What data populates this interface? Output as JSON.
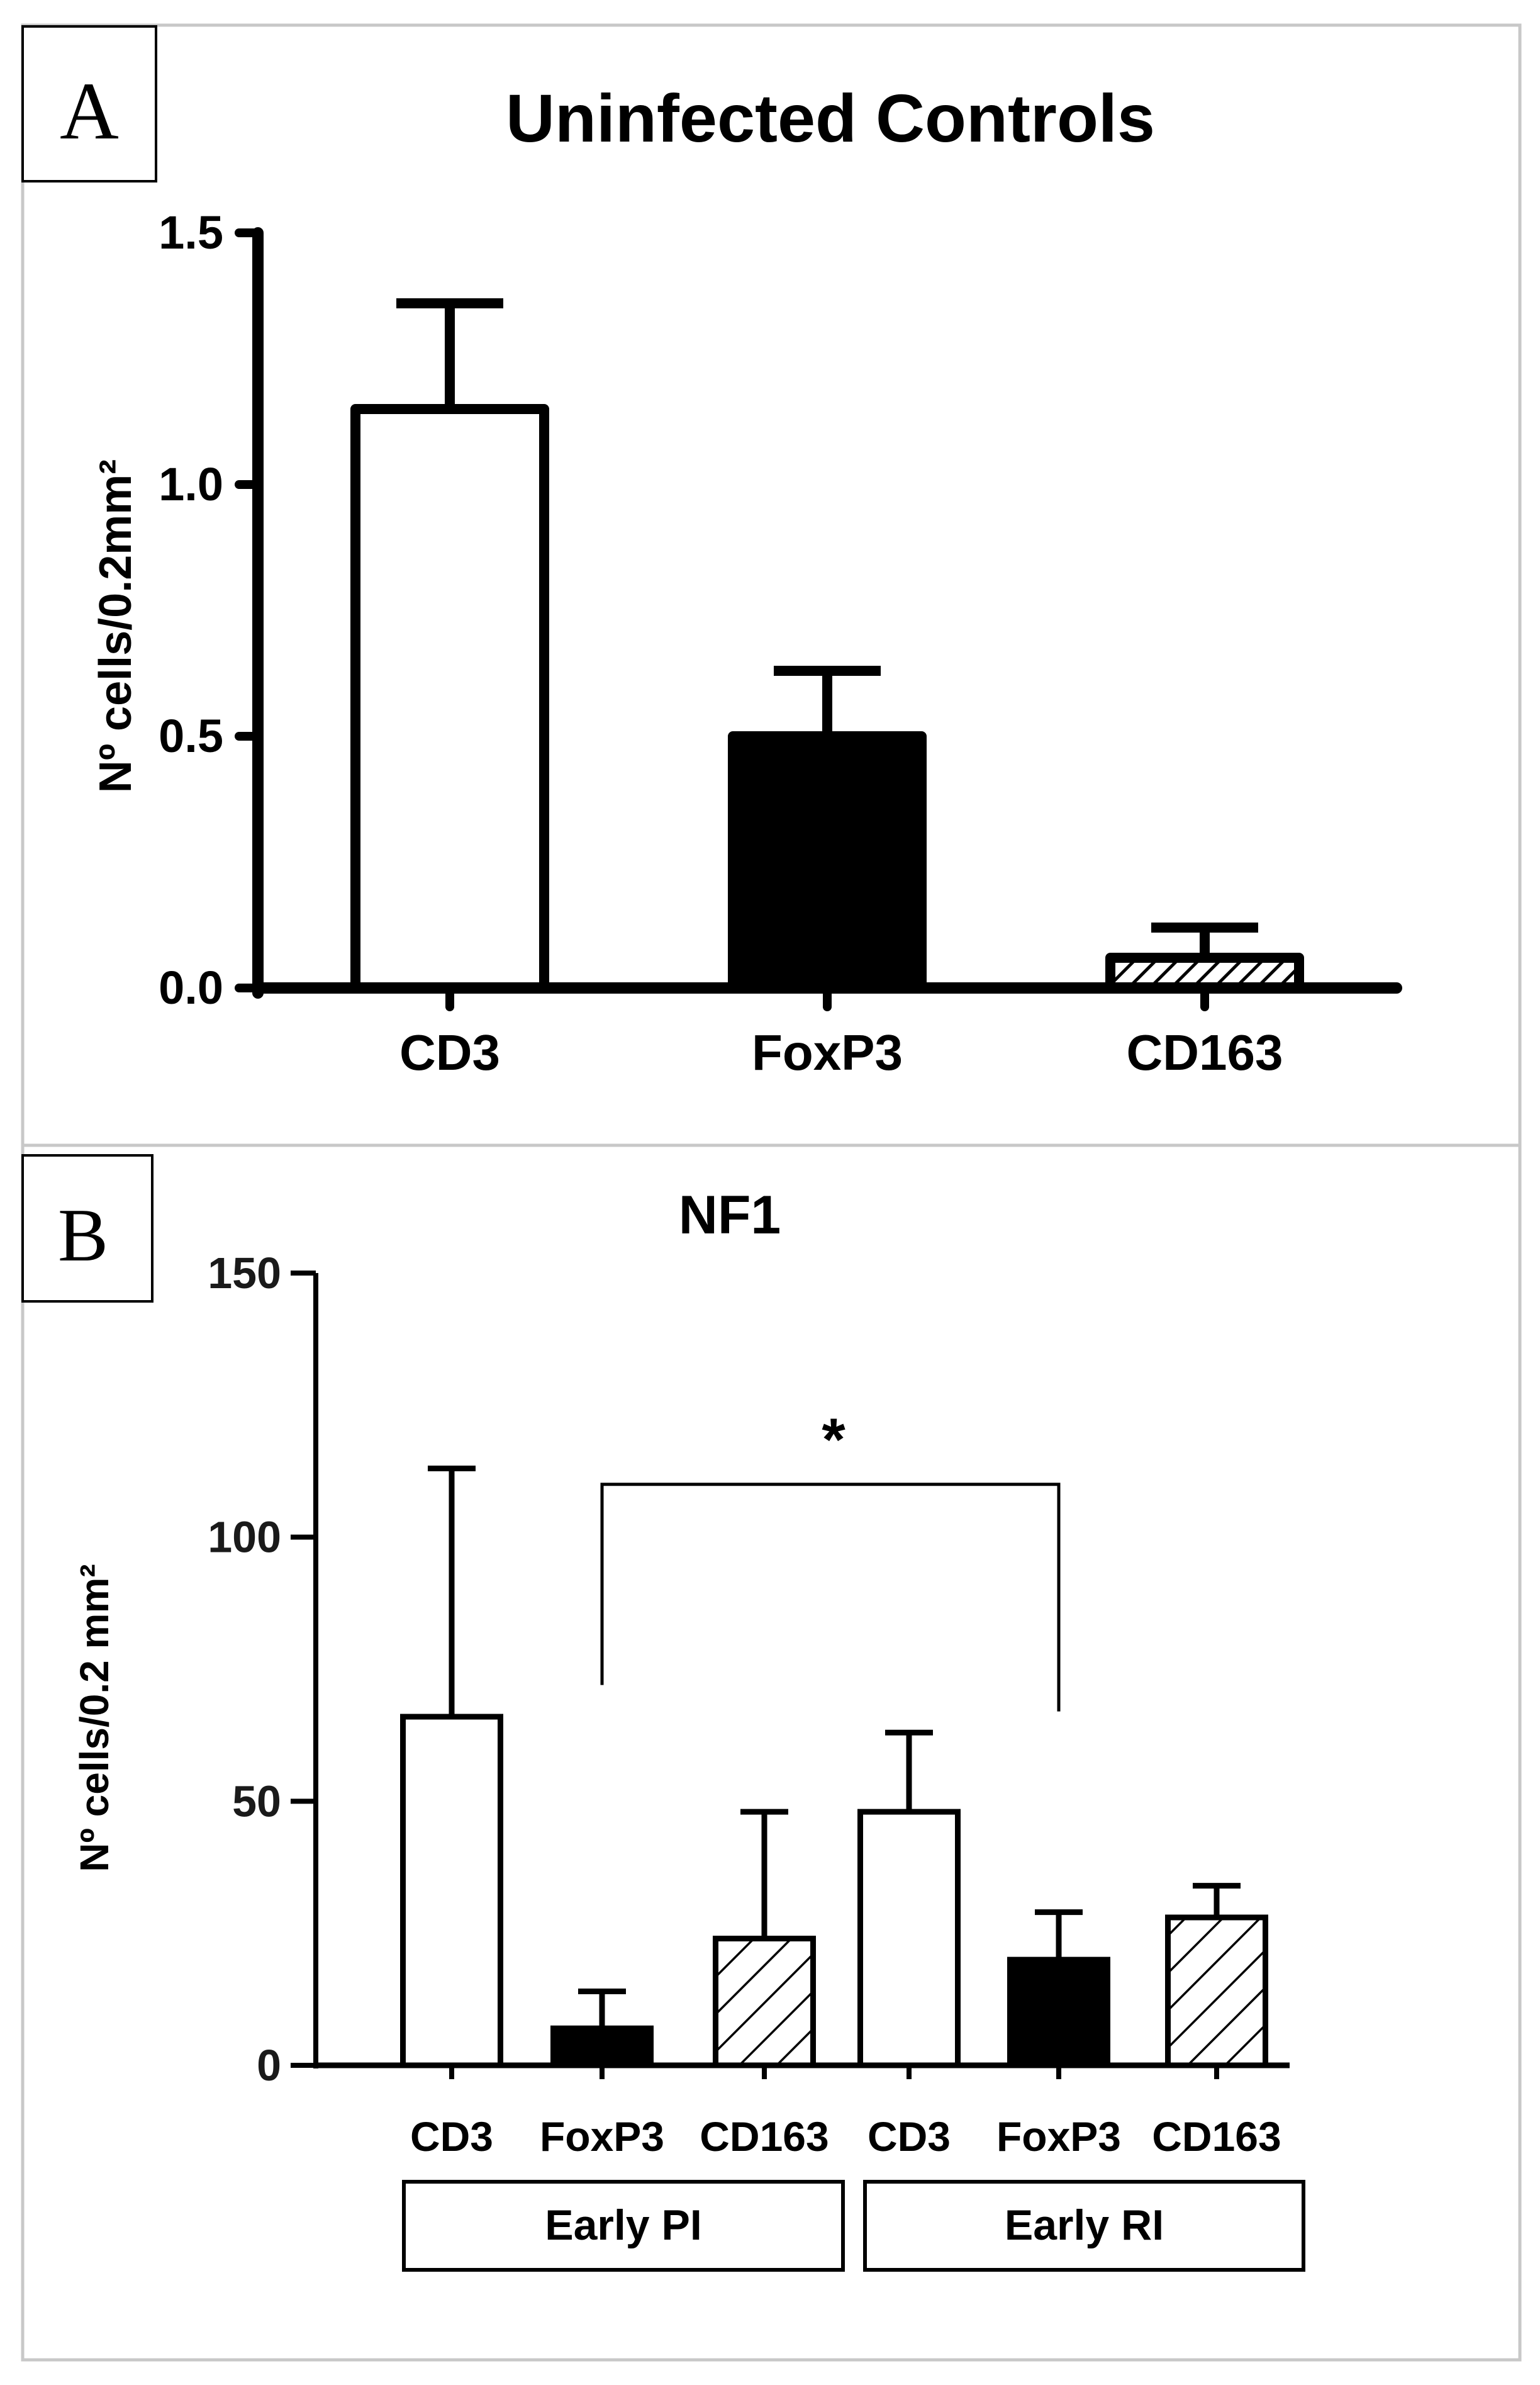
{
  "chart_data": [
    {
      "panel": "A",
      "type": "bar",
      "title": "Uninfected Controls",
      "xlabel": "",
      "ylabel": "Nº cells/0.2mm²",
      "ylim": [
        0,
        1.5
      ],
      "yticks": [
        0.0,
        0.5,
        1.0,
        1.5
      ],
      "ytick_labels": [
        "0.0",
        "0.5",
        "1.0",
        "1.5"
      ],
      "categories": [
        "CD3",
        "FoxP3",
        "CD163"
      ],
      "values": [
        1.15,
        0.5,
        0.06
      ],
      "errors": [
        0.21,
        0.13,
        0.06
      ],
      "fills": [
        "open",
        "solid",
        "hatched"
      ]
    },
    {
      "panel": "B",
      "type": "bar",
      "title": "NF1",
      "xlabel": "",
      "ylabel": "Nº cells/0.2 mm²",
      "ylim": [
        0,
        150
      ],
      "yticks": [
        0,
        50,
        100,
        150
      ],
      "ytick_labels": [
        "0",
        "50",
        "100",
        "150"
      ],
      "categories": [
        "CD3",
        "FoxP3",
        "CD163",
        "CD3",
        "FoxP3",
        "CD163"
      ],
      "values": [
        66,
        7,
        24,
        48,
        20,
        28
      ],
      "errors": [
        47,
        7,
        24,
        15,
        9,
        6
      ],
      "fills": [
        "open",
        "solid",
        "hatched",
        "open",
        "solid",
        "hatched"
      ],
      "groups": [
        {
          "label": "Early PI",
          "bars": [
            0,
            1,
            2
          ]
        },
        {
          "label": "Early RI",
          "bars": [
            3,
            4,
            5
          ]
        }
      ],
      "significance": {
        "label": "*",
        "from": 1,
        "to": 4,
        "level": 110
      }
    }
  ],
  "colors": {
    "ink": "#000000",
    "tick_b": "#1a1a1a",
    "frame": "#c8c8c8",
    "background": "#ffffff"
  }
}
